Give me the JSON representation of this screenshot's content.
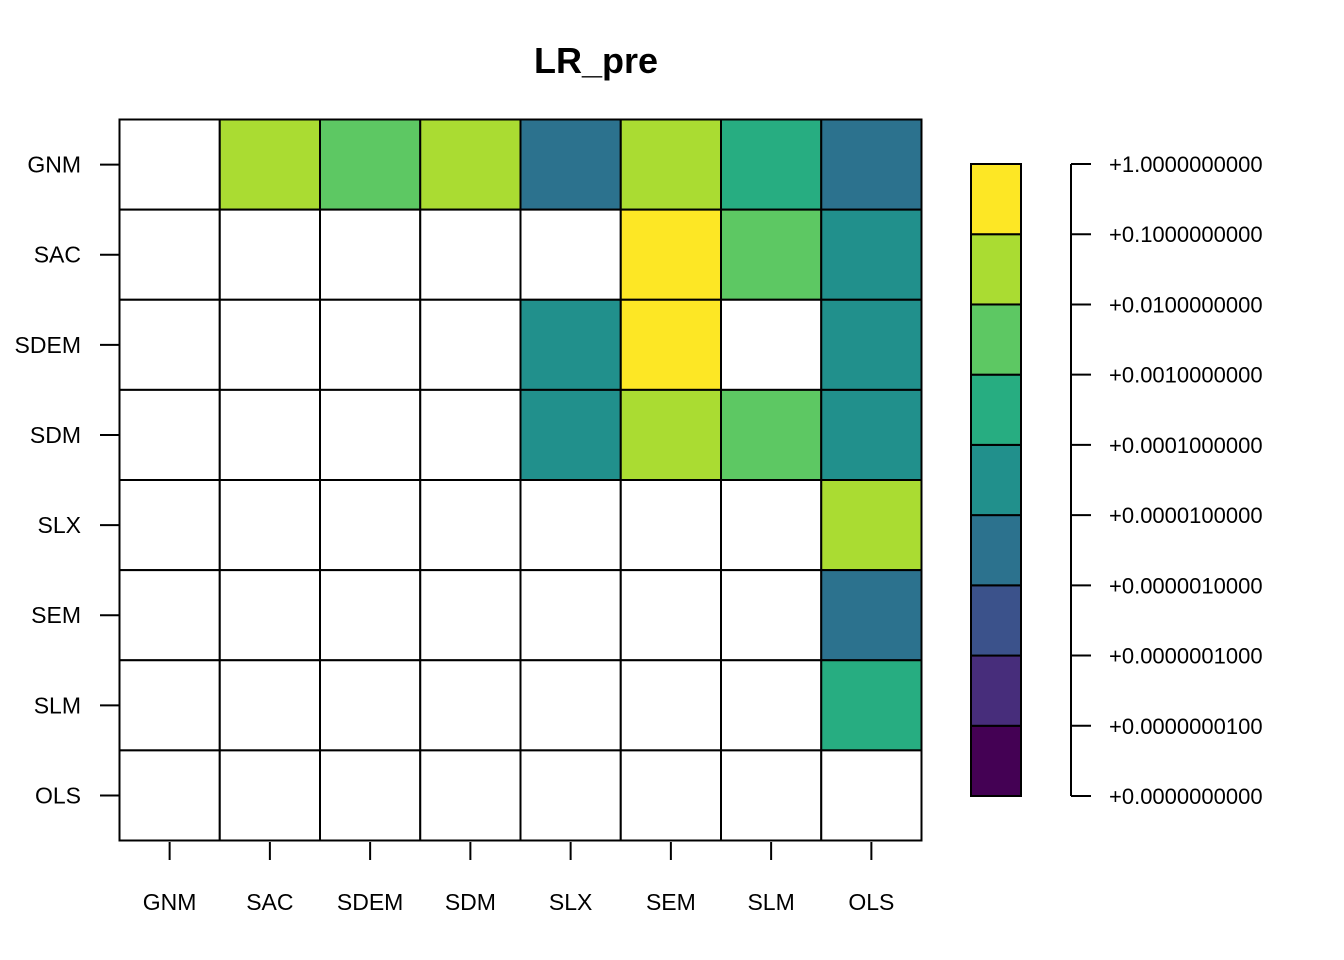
{
  "chart_data": {
    "type": "heatmap",
    "title": "LR_pre",
    "xlabel": "",
    "ylabel": "",
    "x_categories": [
      "GNM",
      "SAC",
      "SDEM",
      "SDM",
      "SLX",
      "SEM",
      "SLM",
      "OLS"
    ],
    "y_categories": [
      "GNM",
      "SAC",
      "SDEM",
      "SDM",
      "SLX",
      "SEM",
      "SLM",
      "OLS"
    ],
    "color_bins": [
      {
        "lower": 0.0,
        "upper": 1e-08,
        "color": "#440154"
      },
      {
        "lower": 1e-08,
        "upper": 1e-07,
        "color": "#472D7B"
      },
      {
        "lower": 1e-07,
        "upper": 1e-06,
        "color": "#3B528B"
      },
      {
        "lower": 1e-06,
        "upper": 1e-05,
        "color": "#2C728E"
      },
      {
        "lower": 1e-05,
        "upper": 0.0001,
        "color": "#21908C"
      },
      {
        "lower": 0.0001,
        "upper": 0.001,
        "color": "#27AD81"
      },
      {
        "lower": 0.001,
        "upper": 0.01,
        "color": "#5DC863"
      },
      {
        "lower": 0.01,
        "upper": 0.1,
        "color": "#AADC32"
      },
      {
        "lower": 0.1,
        "upper": 1.0,
        "color": "#FDE725"
      }
    ],
    "legend_labels": [
      "+1.0000000000",
      "+0.1000000000",
      "+0.0100000000",
      "+0.0010000000",
      "+0.0001000000",
      "+0.0000100000",
      "+0.0000010000",
      "+0.0000001000",
      "+0.0000000100",
      "+0.0000000000"
    ],
    "cell_bins": [
      [
        null,
        7,
        6,
        7,
        3,
        7,
        5,
        3
      ],
      [
        null,
        null,
        null,
        null,
        null,
        8,
        6,
        4
      ],
      [
        null,
        null,
        null,
        null,
        4,
        8,
        null,
        4
      ],
      [
        null,
        null,
        null,
        null,
        4,
        7,
        6,
        4
      ],
      [
        null,
        null,
        null,
        null,
        null,
        null,
        null,
        7
      ],
      [
        null,
        null,
        null,
        null,
        null,
        null,
        null,
        3
      ],
      [
        null,
        null,
        null,
        null,
        null,
        null,
        null,
        5
      ],
      [
        null,
        null,
        null,
        null,
        null,
        null,
        null,
        null
      ]
    ],
    "empty_color": "#FFFFFF",
    "grid": true,
    "legend_position": "right"
  }
}
